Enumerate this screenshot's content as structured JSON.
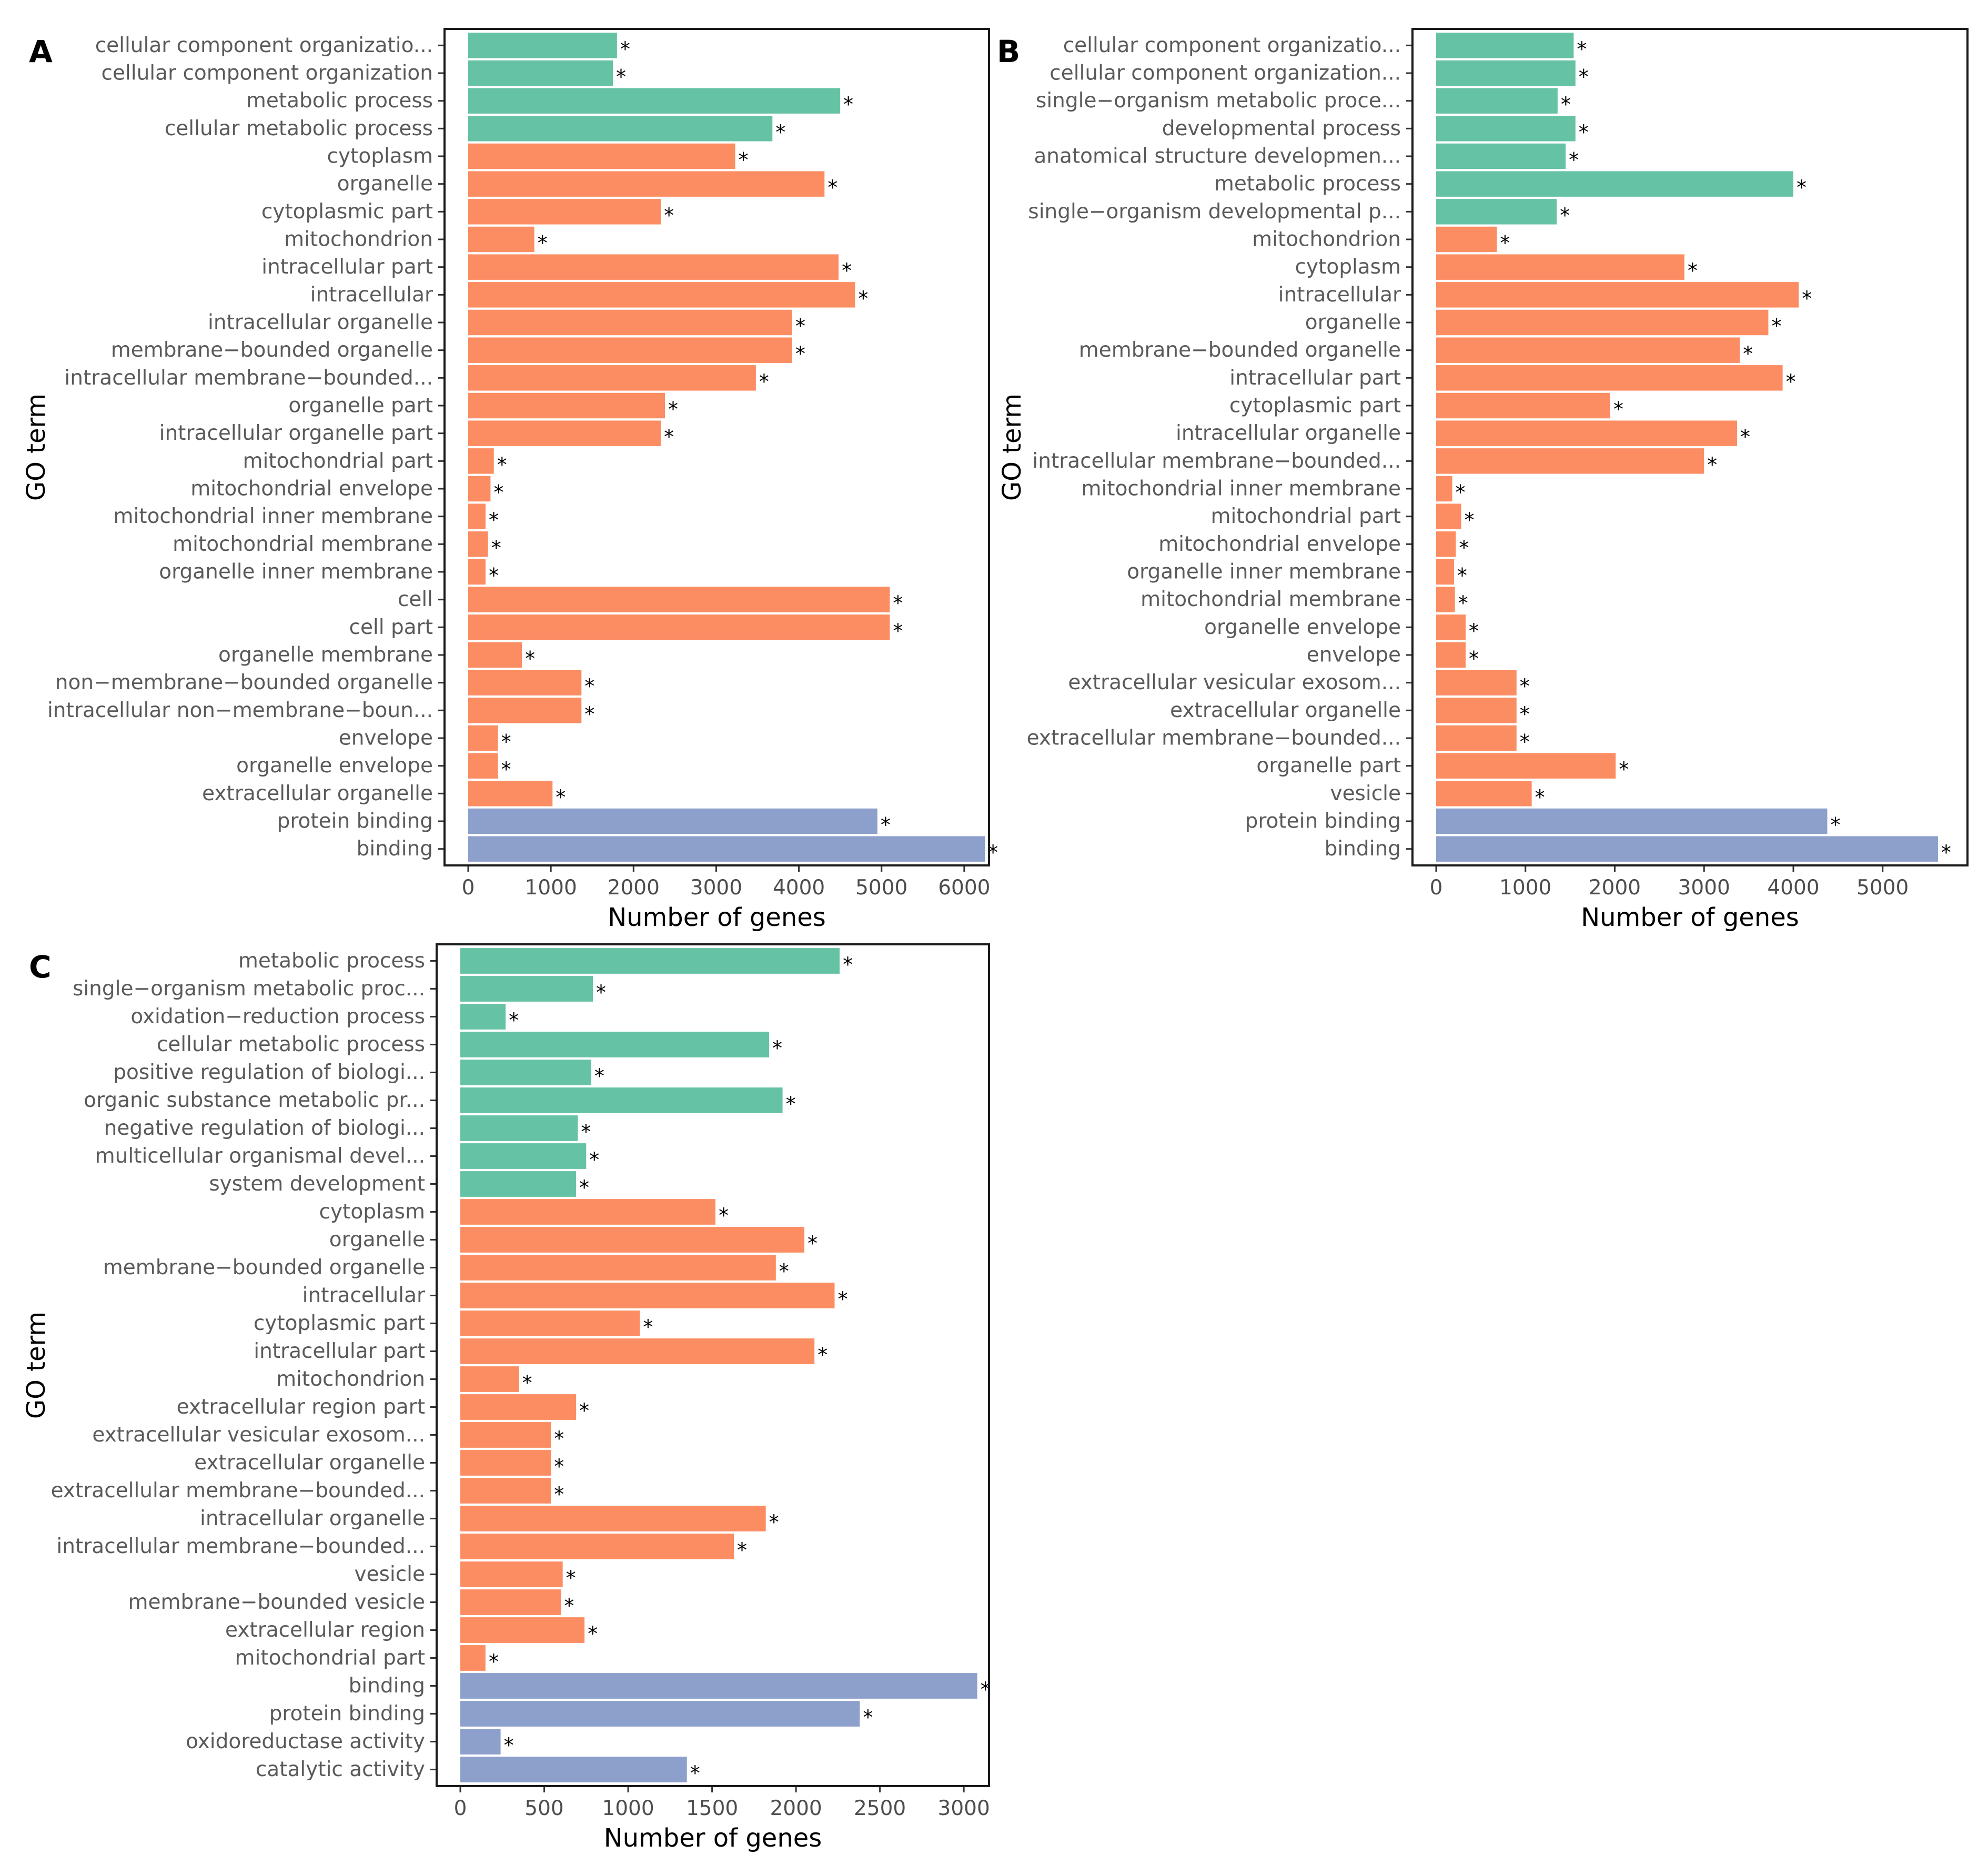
{
  "chart_data": [
    {
      "panel": "A",
      "type": "bar",
      "orientation": "horizontal",
      "xlabel": "Number of genes",
      "ylabel": "GO term",
      "xlim": [
        0,
        6300
      ],
      "xticks": [
        0,
        1000,
        2000,
        3000,
        4000,
        5000,
        6000
      ],
      "grid": false,
      "significance_marker": "*",
      "categories": [
        "cellular component organizatio...",
        "cellular component organization",
        "metabolic process",
        "cellular metabolic process",
        "cytoplasm",
        "organelle",
        "cytoplasmic part",
        "mitochondrion",
        "intracellular part",
        "intracellular",
        "intracellular organelle",
        "membrane−bounded organelle",
        "intracellular membrane−bounded...",
        "organelle part",
        "intracellular organelle part",
        "mitochondrial part",
        "mitochondrial envelope",
        "mitochondrial inner membrane",
        "mitochondrial membrane",
        "organelle inner membrane",
        "cell",
        "cell part",
        "organelle membrane",
        "non−membrane−bounded organelle",
        "intracellular non−membrane−boun...",
        "envelope",
        "organelle envelope",
        "extracellular organelle",
        "protein binding",
        "binding"
      ],
      "values": [
        1800,
        1750,
        4500,
        3680,
        3230,
        4310,
        2330,
        800,
        4480,
        4680,
        3920,
        3920,
        3480,
        2380,
        2330,
        310,
        270,
        210,
        240,
        210,
        5100,
        5100,
        650,
        1370,
        1370,
        360,
        360,
        1020,
        4950,
        6250
      ],
      "groups": [
        "BP",
        "BP",
        "BP",
        "BP",
        "CC",
        "CC",
        "CC",
        "CC",
        "CC",
        "CC",
        "CC",
        "CC",
        "CC",
        "CC",
        "CC",
        "CC",
        "CC",
        "CC",
        "CC",
        "CC",
        "CC",
        "CC",
        "CC",
        "CC",
        "CC",
        "CC",
        "CC",
        "CC",
        "MF",
        "MF"
      ],
      "group_colors": {
        "BP": "#66c2a5",
        "CC": "#fc8d62",
        "MF": "#8da0cb"
      }
    },
    {
      "panel": "B",
      "type": "bar",
      "orientation": "horizontal",
      "xlabel": "Number of genes",
      "ylabel": "GO term",
      "xlim": [
        0,
        5950
      ],
      "xticks": [
        0,
        1000,
        2000,
        3000,
        4000,
        5000
      ],
      "grid": false,
      "significance_marker": "*",
      "categories": [
        "cellular component organizatio...",
        "cellular component organization...",
        "single−organism metabolic proce...",
        "developmental process",
        "anatomical structure developmen...",
        "metabolic process",
        "single−organism developmental p...",
        "mitochondrion",
        "cytoplasm",
        "intracellular",
        "organelle",
        "membrane−bounded organelle",
        "intracellular part",
        "cytoplasmic part",
        "intracellular organelle",
        "intracellular membrane−bounded...",
        "mitochondrial inner membrane",
        "mitochondrial part",
        "mitochondrial envelope",
        "organelle inner membrane",
        "mitochondrial membrane",
        "organelle envelope",
        "envelope",
        "extracellular vesicular exosom...",
        "extracellular organelle",
        "extracellular membrane−bounded...",
        "organelle part",
        "vesicle",
        "protein binding",
        "binding"
      ],
      "values": [
        1540,
        1560,
        1360,
        1560,
        1450,
        4000,
        1350,
        680,
        2780,
        4060,
        3720,
        3400,
        3880,
        1950,
        3370,
        3000,
        180,
        280,
        220,
        200,
        210,
        330,
        330,
        900,
        900,
        900,
        2010,
        1070,
        4380,
        5620
      ],
      "groups": [
        "BP",
        "BP",
        "BP",
        "BP",
        "BP",
        "BP",
        "BP",
        "CC",
        "CC",
        "CC",
        "CC",
        "CC",
        "CC",
        "CC",
        "CC",
        "CC",
        "CC",
        "CC",
        "CC",
        "CC",
        "CC",
        "CC",
        "CC",
        "CC",
        "CC",
        "CC",
        "CC",
        "CC",
        "MF",
        "MF"
      ],
      "group_colors": {
        "BP": "#66c2a5",
        "CC": "#fc8d62",
        "MF": "#8da0cb"
      }
    },
    {
      "panel": "C",
      "type": "bar",
      "orientation": "horizontal",
      "xlabel": "Number of genes",
      "ylabel": "GO term",
      "xlim": [
        0,
        3150
      ],
      "xticks": [
        0,
        500,
        1000,
        1500,
        2000,
        2500,
        3000
      ],
      "grid": false,
      "significance_marker": "*",
      "categories": [
        "metabolic process",
        "single−organism metabolic proc...",
        "oxidation−reduction process",
        "cellular metabolic process",
        "positive regulation of biologi...",
        "organic substance metabolic pr...",
        "negative regulation of biologi...",
        "multicellular organismal devel...",
        "system development",
        "cytoplasm",
        "organelle",
        "membrane−bounded organelle",
        "intracellular",
        "cytoplasmic part",
        "intracellular part",
        "mitochondrion",
        "extracellular region part",
        "extracellular vesicular exosom...",
        "extracellular organelle",
        "extracellular membrane−bounded...",
        "intracellular organelle",
        "intracellular membrane−bounded...",
        "vesicle",
        "membrane−bounded vesicle",
        "extracellular region",
        "mitochondrial part",
        "binding",
        "protein binding",
        "oxidoreductase activity",
        "catalytic activity"
      ],
      "values": [
        2260,
        790,
        270,
        1840,
        780,
        1920,
        700,
        750,
        690,
        1520,
        2050,
        1880,
        2230,
        1070,
        2110,
        350,
        690,
        540,
        540,
        540,
        1820,
        1630,
        610,
        600,
        740,
        150,
        3080,
        2380,
        240,
        1350
      ],
      "groups": [
        "BP",
        "BP",
        "BP",
        "BP",
        "BP",
        "BP",
        "BP",
        "BP",
        "BP",
        "CC",
        "CC",
        "CC",
        "CC",
        "CC",
        "CC",
        "CC",
        "CC",
        "CC",
        "CC",
        "CC",
        "CC",
        "CC",
        "CC",
        "CC",
        "CC",
        "CC",
        "MF",
        "MF",
        "MF",
        "MF"
      ],
      "group_colors": {
        "BP": "#66c2a5",
        "CC": "#fc8d62",
        "MF": "#8da0cb"
      }
    }
  ]
}
